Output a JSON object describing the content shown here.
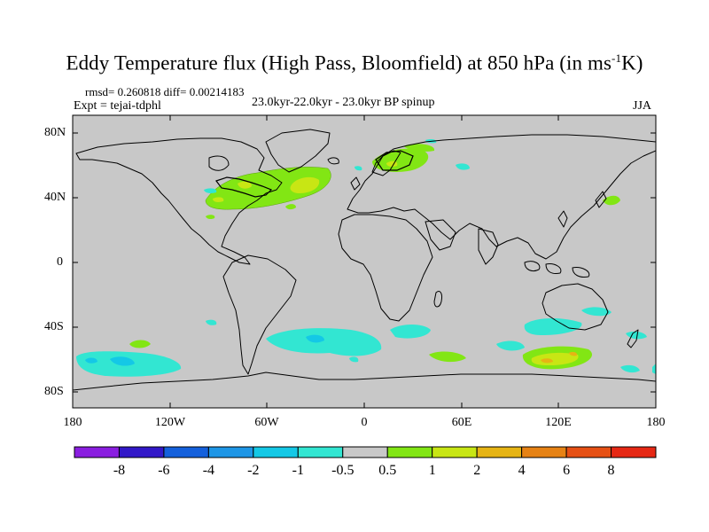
{
  "title": {
    "main": "Eddy Temperature flux (High Pass, Bloomfield) at 850 hPa (in ms",
    "sup": "-1",
    "tail": "K)"
  },
  "header": {
    "stats": "rmsd= 0.260818 diff= 0.00214183",
    "experiment": "Expt = tejai-tdphl",
    "period": "23.0kyr-22.0kyr - 23.0kyr BP spinup",
    "season": "JJA"
  },
  "axes": {
    "lat_labels": [
      "80N",
      "40N",
      "0",
      "40S",
      "80S"
    ],
    "lon_labels": [
      "180",
      "120W",
      "60W",
      "0",
      "60E",
      "120E",
      "180"
    ]
  },
  "colorbar": {
    "labels": [
      "-8",
      "-6",
      "-4",
      "-2",
      "-1",
      "-0.5",
      "0.5",
      "1",
      "2",
      "4",
      "6",
      "8"
    ],
    "colors": [
      "#8a1ee0",
      "#3218c8",
      "#1460dc",
      "#1e96e6",
      "#14c8e6",
      "#32e6d2",
      "#c8c8c8",
      "#82e614",
      "#c8e614",
      "#e6b414",
      "#e68214",
      "#e65014",
      "#e62814"
    ]
  },
  "map": {
    "background": "#c8c8c8",
    "anomalies": [
      {
        "region": "North America / Northwest Atlantic",
        "level": "1",
        "color": "#82e614"
      },
      {
        "region": "Central North Atlantic",
        "level": "2",
        "color": "#c8e614"
      },
      {
        "region": "Scandinavia / Baltic",
        "level": "1",
        "color": "#82e614"
      },
      {
        "region": "Southern Ocean Pacific sector",
        "level": "-1",
        "color": "#32e6d2"
      },
      {
        "region": "South Atlantic",
        "level": "-1",
        "color": "#32e6d2"
      },
      {
        "region": "South of Australia",
        "level": "2",
        "color": "#c8e614"
      },
      {
        "region": "South of Australia core",
        "level": "4",
        "color": "#e6b414"
      }
    ]
  }
}
